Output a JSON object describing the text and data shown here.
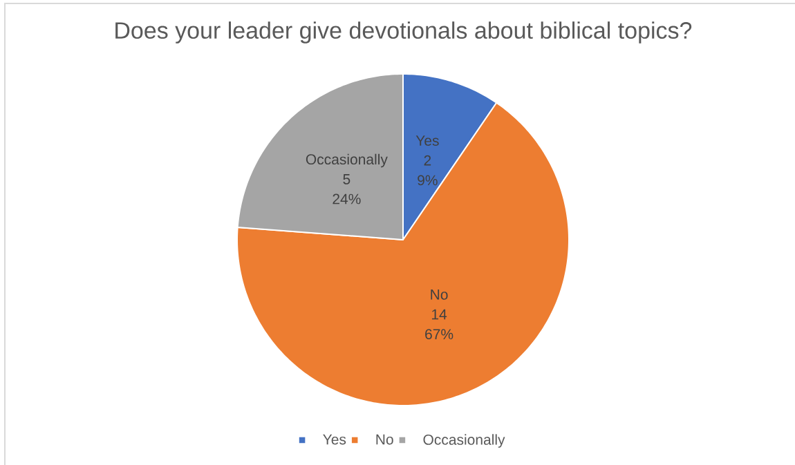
{
  "chart_data": {
    "type": "pie",
    "title": "Does your leader give devotionals about biblical topics?",
    "categories": [
      "Yes",
      "No",
      "Occasionally"
    ],
    "values": [
      2,
      14,
      5
    ],
    "colors": [
      "#4472c4",
      "#ed7d31",
      "#a5a5a5"
    ],
    "value_labels": [
      "2 9%",
      "14 67%",
      "5 24%"
    ],
    "legend": "bottom"
  }
}
